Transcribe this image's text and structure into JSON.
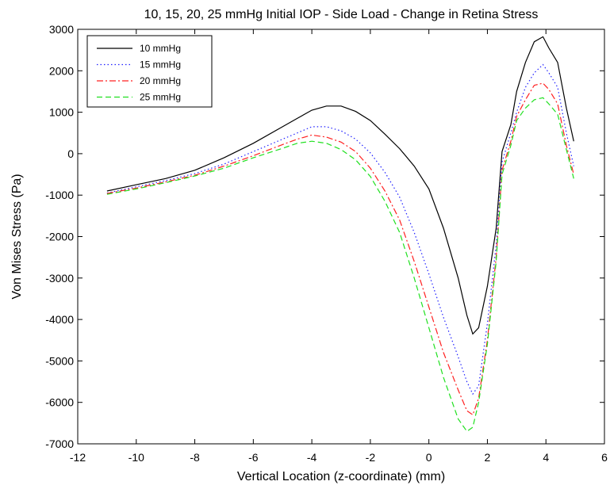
{
  "chart_data": {
    "type": "line",
    "title": "10, 15, 20, 25 mmHg Initial IOP - Side Load - Change in Retina Stress",
    "xlabel": "Vertical Location (z-coordinate) (mm)",
    "ylabel": "Von Mises Stress (Pa)",
    "xlim": [
      -12,
      6
    ],
    "ylim": [
      -7000,
      3000
    ],
    "xticks": [
      -12,
      -10,
      -8,
      -6,
      -4,
      -2,
      0,
      2,
      4,
      6
    ],
    "yticks": [
      -7000,
      -6000,
      -5000,
      -4000,
      -3000,
      -2000,
      -1000,
      0,
      1000,
      2000,
      3000
    ],
    "grid": false,
    "legend_position": "top-left",
    "series": [
      {
        "name": "10 mmHg",
        "color": "#000000",
        "style": "solid",
        "x": [
          -11,
          -10,
          -9,
          -8,
          -7,
          -6,
          -5,
          -4.5,
          -4,
          -3.5,
          -3,
          -2.5,
          -2,
          -1.5,
          -1,
          -0.5,
          0,
          0.5,
          1,
          1.3,
          1.5,
          1.7,
          2,
          2.3,
          2.5,
          2.8,
          3,
          3.3,
          3.6,
          3.9,
          4.1,
          4.4,
          4.7,
          4.95
        ],
        "y": [
          -900,
          -750,
          -600,
          -400,
          -100,
          250,
          650,
          850,
          1050,
          1150,
          1150,
          1020,
          800,
          470,
          120,
          -300,
          -850,
          -1800,
          -3000,
          -3900,
          -4350,
          -4200,
          -3200,
          -1800,
          50,
          700,
          1500,
          2200,
          2700,
          2820,
          2550,
          2200,
          1100,
          300
        ]
      },
      {
        "name": "15 mmHg",
        "color": "#2020ff",
        "style": "dotted",
        "x": [
          -11,
          -10,
          -9,
          -8,
          -7,
          -6,
          -5,
          -4.5,
          -4,
          -3.5,
          -3,
          -2.5,
          -2,
          -1.5,
          -1,
          -0.5,
          0,
          0.5,
          1,
          1.3,
          1.5,
          1.7,
          2,
          2.3,
          2.5,
          2.8,
          3,
          3.3,
          3.6,
          3.9,
          4.1,
          4.4,
          4.7,
          4.95
        ],
        "y": [
          -950,
          -800,
          -650,
          -480,
          -250,
          50,
          350,
          500,
          650,
          650,
          550,
          350,
          20,
          -450,
          -1050,
          -1900,
          -2900,
          -3950,
          -4900,
          -5500,
          -5800,
          -5600,
          -4100,
          -2200,
          -200,
          500,
          1000,
          1600,
          1950,
          2150,
          1950,
          1600,
          500,
          -300
        ]
      },
      {
        "name": "20 mmHg",
        "color": "#ff2020",
        "style": "dashdot",
        "x": [
          -11,
          -10,
          -9,
          -8,
          -7,
          -6,
          -5,
          -4.5,
          -4,
          -3.5,
          -3,
          -2.5,
          -2,
          -1.5,
          -1,
          -0.5,
          0,
          0.5,
          1,
          1.3,
          1.5,
          1.7,
          2,
          2.3,
          2.5,
          2.8,
          3,
          3.3,
          3.6,
          3.9,
          4.1,
          4.4,
          4.7,
          4.95
        ],
        "y": [
          -960,
          -830,
          -680,
          -520,
          -300,
          -50,
          220,
          350,
          450,
          400,
          280,
          50,
          -350,
          -900,
          -1600,
          -2600,
          -3700,
          -4800,
          -5700,
          -6200,
          -6300,
          -5900,
          -4500,
          -2500,
          -400,
          300,
          900,
          1300,
          1650,
          1700,
          1550,
          1200,
          200,
          -500
        ]
      },
      {
        "name": "25 mmHg",
        "color": "#20e020",
        "style": "dashed",
        "x": [
          -11,
          -10,
          -9,
          -8,
          -7,
          -6,
          -5,
          -4.5,
          -4,
          -3.5,
          -3,
          -2.5,
          -2,
          -1.5,
          -1,
          -0.5,
          0,
          0.5,
          1,
          1.3,
          1.5,
          1.7,
          2,
          2.3,
          2.5,
          2.8,
          3,
          3.3,
          3.6,
          3.9,
          4.1,
          4.4,
          4.7,
          4.95
        ],
        "y": [
          -980,
          -850,
          -700,
          -540,
          -350,
          -100,
          130,
          250,
          300,
          250,
          100,
          -150,
          -550,
          -1150,
          -1900,
          -3000,
          -4200,
          -5400,
          -6400,
          -6700,
          -6600,
          -6000,
          -4600,
          -2600,
          -500,
          200,
          800,
          1100,
          1300,
          1350,
          1200,
          950,
          100,
          -600
        ]
      }
    ]
  }
}
